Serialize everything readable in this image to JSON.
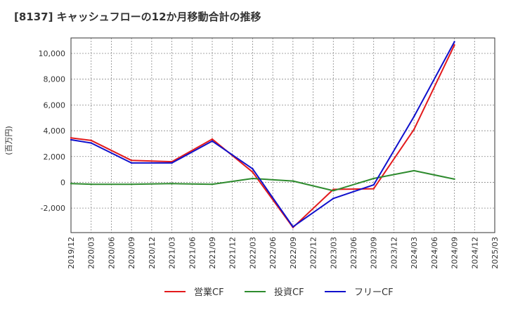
{
  "chart_data": {
    "type": "line",
    "title": "[8137]  キャッシュフローの12か月移動合計の推移",
    "ylabel": "(百万円)",
    "xlabel": "",
    "ylim": [
      -3900,
      11200
    ],
    "yticks": [
      -2000,
      0,
      2000,
      4000,
      6000,
      8000,
      10000
    ],
    "ytick_labels": [
      "-2,000",
      "0",
      "2,000",
      "4,000",
      "6,000",
      "8,000",
      "10,000"
    ],
    "categories": [
      "2019/12",
      "2020/03",
      "2020/06",
      "2020/09",
      "2020/12",
      "2021/03",
      "2021/06",
      "2021/09",
      "2021/12",
      "2022/03",
      "2022/06",
      "2022/09",
      "2022/12",
      "2023/03",
      "2023/06",
      "2023/09",
      "2023/12",
      "2024/03",
      "2024/06",
      "2024/09",
      "2024/12",
      "2025/03"
    ],
    "grid": true,
    "legend_position": "bottom",
    "series": [
      {
        "name": "営業CF",
        "color": "#e31a1c",
        "values": [
          3450,
          3250,
          null,
          1700,
          null,
          1600,
          null,
          3350,
          null,
          800,
          null,
          -3500,
          null,
          -550,
          null,
          -500,
          null,
          4100,
          null,
          10650,
          null,
          null
        ]
      },
      {
        "name": "投資CF",
        "color": "#2e8b2e",
        "values": [
          -100,
          -150,
          null,
          -150,
          null,
          -100,
          null,
          -150,
          null,
          300,
          null,
          100,
          null,
          -650,
          null,
          300,
          null,
          900,
          null,
          250,
          null,
          null
        ]
      },
      {
        "name": "フリーCF",
        "color": "#1010cc",
        "values": [
          3300,
          3050,
          null,
          1500,
          null,
          1500,
          null,
          3200,
          null,
          1050,
          null,
          -3450,
          null,
          -1250,
          null,
          -200,
          null,
          5100,
          null,
          10900,
          null,
          null
        ]
      }
    ]
  }
}
